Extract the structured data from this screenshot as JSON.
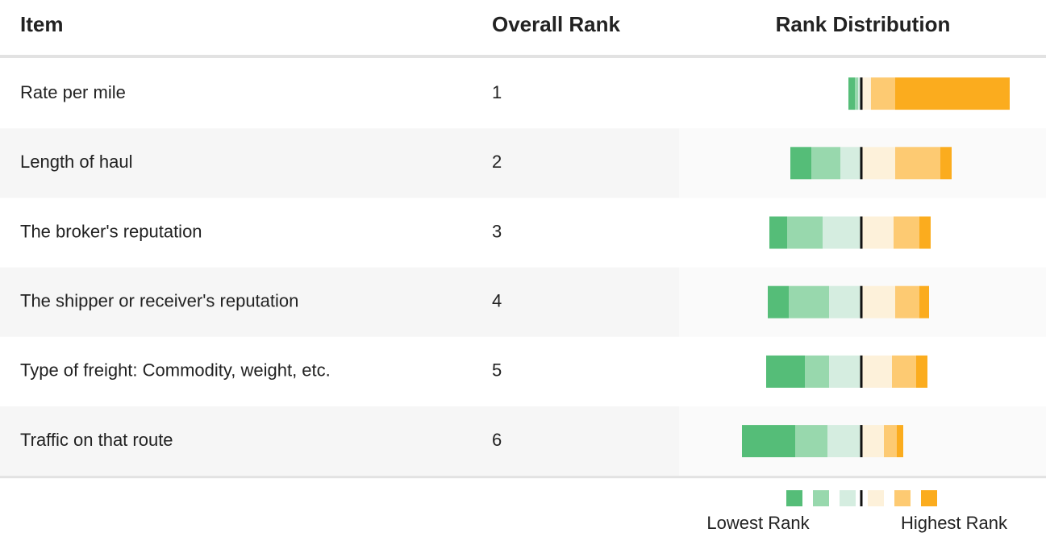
{
  "header": {
    "item": "Item",
    "rank": "Overall Rank",
    "distribution": "Rank Distribution"
  },
  "colors": [
    "#55bd78",
    "#98d8ad",
    "#d5ede0",
    "#fdf1da",
    "#fdca72",
    "#fbac1e"
  ],
  "rows": [
    {
      "item": "Rate per mile",
      "rank": 1,
      "distribution": [
        4,
        2,
        2,
        6,
        15,
        71
      ]
    },
    {
      "item": "Length of haul",
      "rank": 2,
      "distribution": [
        13,
        18,
        13,
        21,
        28,
        7
      ]
    },
    {
      "item": "The broker's reputation",
      "rank": 3,
      "distribution": [
        11,
        22,
        24,
        20,
        16,
        7
      ]
    },
    {
      "item": "The shipper or receiver's reputation",
      "rank": 4,
      "distribution": [
        13,
        25,
        20,
        21,
        15,
        6
      ]
    },
    {
      "item": "Type of freight: Commodity, weight, etc.",
      "rank": 5,
      "distribution": [
        24,
        15,
        20,
        19,
        15,
        7
      ]
    },
    {
      "item": "Traffic on that route",
      "rank": 6,
      "distribution": [
        33,
        20,
        21,
        14,
        8,
        4
      ]
    }
  ],
  "legend": {
    "low": "Lowest Rank",
    "high": "Highest Rank"
  }
}
